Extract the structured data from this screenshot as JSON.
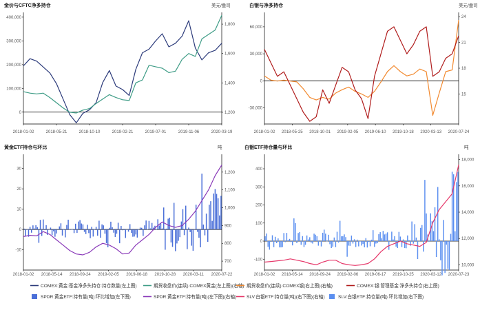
{
  "colors": {
    "navy": "#2b3a7a",
    "teal": "#3e9c86",
    "orange": "#f28a30",
    "darkred": "#b01c1c",
    "blue": "#4a6fd8",
    "purple": "#8a3ab9",
    "pink": "#e6386a",
    "ltblue": "#5b8ff0",
    "axis": "#000000",
    "grid": "#cccccc"
  },
  "legend": {
    "row1": [
      {
        "label": "COMEX:黄金:基金净多头持仓:持仓数量(左上图)",
        "kind": "line",
        "color": "#2b3a7a"
      },
      {
        "label": "期货收盘价(连续):COMEX黄金(左上图)(右轴)",
        "kind": "line",
        "color": "#3e9c86"
      },
      {
        "label": "期货收盘价(连续):COMEX银(右上图)(右轴)",
        "kind": "line",
        "color": "#f28a30"
      },
      {
        "label": "COMEX:银:管理基金:净多头持仓(右上图)",
        "kind": "line",
        "color": "#b01c1c"
      }
    ],
    "row2": [
      {
        "label": "SPDR:黄金ETF:持有量(吨):环比增加(左下图)",
        "kind": "bar",
        "color": "#4a6fd8"
      },
      {
        "label": "SPDR:黄金ETF:持有量(吨)(左下图)(右轴)",
        "kind": "line",
        "color": "#8a3ab9"
      },
      {
        "label": "SLV:白银ETF:持仓量(吨)(右下图)(右轴)",
        "kind": "line",
        "color": "#e6386a"
      },
      {
        "label": "SLV:白银ETF:持仓量(吨):环比增加(右下图)",
        "kind": "bar",
        "color": "#5b8ff0"
      }
    ]
  },
  "chart_data": [
    {
      "id": "c1",
      "type": "line",
      "title": "金价与CFTC净多持仓",
      "right_unit": "美元/盎司",
      "x_ticks": [
        "2018-01-02",
        "2018-05-21",
        "2018-10-10",
        "2019-02-21",
        "2019-07-01",
        "2019-11-06",
        "2020-03-19"
      ],
      "y_left": {
        "range": [
          -50000,
          420000
        ],
        "ticks": [
          "0",
          "100,000",
          "200,000",
          "300,000",
          "400,000"
        ],
        "tick_values": [
          0,
          100000,
          200000,
          300000,
          400000
        ]
      },
      "y_right": {
        "range": [
          1120,
          1880
        ],
        "ticks": [
          "1,200",
          "1,400",
          "1,600",
          "1,800"
        ],
        "tick_values": [
          1200,
          1400,
          1600,
          1800
        ]
      },
      "series": [
        {
          "color": "#2b3a7a",
          "axis": "left",
          "x": [
            "2018-01",
            "2018-02",
            "2018-03",
            "2018-04",
            "2018-05",
            "2018-06",
            "2018-07",
            "2018-08",
            "2018-09",
            "2018-10",
            "2018-11",
            "2018-12",
            "2019-01",
            "2019-02",
            "2019-03",
            "2019-04",
            "2019-05",
            "2019-06",
            "2019-07",
            "2019-08",
            "2019-09",
            "2019-10",
            "2019-11",
            "2019-12",
            "2020-01",
            "2020-02",
            "2020-03",
            "2020-04",
            "2020-05",
            "2020-06",
            "2020-07"
          ],
          "values": [
            195000,
            225000,
            215000,
            190000,
            165000,
            120000,
            55000,
            -10000,
            -45000,
            -5000,
            10000,
            40000,
            125000,
            175000,
            110000,
            95000,
            70000,
            180000,
            250000,
            265000,
            300000,
            330000,
            275000,
            290000,
            320000,
            385000,
            270000,
            220000,
            250000,
            260000,
            290000
          ]
        },
        {
          "color": "#3e9c86",
          "axis": "right",
          "x": [
            "2018-01",
            "2018-02",
            "2018-03",
            "2018-04",
            "2018-05",
            "2018-06",
            "2018-07",
            "2018-08",
            "2018-09",
            "2018-10",
            "2018-11",
            "2018-12",
            "2019-01",
            "2019-02",
            "2019-03",
            "2019-04",
            "2019-05",
            "2019-06",
            "2019-07",
            "2019-08",
            "2019-09",
            "2019-10",
            "2019-11",
            "2019-12",
            "2020-01",
            "2020-02",
            "2020-03",
            "2020-04",
            "2020-05",
            "2020-06",
            "2020-07"
          ],
          "values": [
            1340,
            1330,
            1325,
            1330,
            1300,
            1265,
            1230,
            1200,
            1195,
            1215,
            1225,
            1260,
            1290,
            1320,
            1300,
            1285,
            1280,
            1400,
            1420,
            1520,
            1510,
            1500,
            1470,
            1480,
            1560,
            1600,
            1580,
            1700,
            1730,
            1760,
            1860
          ]
        }
      ]
    },
    {
      "id": "c2",
      "type": "line",
      "title": "白银与净多持仓",
      "right_unit": "美元/盎司",
      "x_ticks": [
        "2018-01-02",
        "2018-05-25",
        "2018-10-01",
        "2019-02-05",
        "2019-06-10",
        "2019-10-18",
        "2020-03-13",
        "2020-07-24"
      ],
      "y_left": {
        "range": [
          -48000,
          76000
        ],
        "ticks": [
          "-30,000",
          "0",
          "30,000",
          "60,000"
        ],
        "tick_values": [
          -30000,
          0,
          30000,
          60000
        ]
      },
      "y_right": {
        "range": [
          11.5,
          24.5
        ],
        "ticks": [
          "15",
          "18",
          "21",
          "24"
        ],
        "tick_values": [
          15,
          18,
          21,
          24
        ]
      },
      "series": [
        {
          "color": "#f28a30",
          "axis": "right",
          "x": [
            "2018-01",
            "2018-02",
            "2018-03",
            "2018-04",
            "2018-05",
            "2018-06",
            "2018-07",
            "2018-08",
            "2018-09",
            "2018-10",
            "2018-11",
            "2018-12",
            "2019-01",
            "2019-02",
            "2019-03",
            "2019-04",
            "2019-05",
            "2019-06",
            "2019-07",
            "2019-08",
            "2019-09",
            "2019-10",
            "2019-11",
            "2019-12",
            "2020-01",
            "2020-02",
            "2020-03",
            "2020-04",
            "2020-05",
            "2020-06",
            "2020-07"
          ],
          "values": [
            17.1,
            16.6,
            16.5,
            16.6,
            16.5,
            16.4,
            15.6,
            14.6,
            14.3,
            14.6,
            14.4,
            15.1,
            15.5,
            15.8,
            15.3,
            15.0,
            14.6,
            15.3,
            16.4,
            17.6,
            18.3,
            17.6,
            17.1,
            17.3,
            17.9,
            17.6,
            12.5,
            15.1,
            17.6,
            17.8,
            23.6
          ]
        },
        {
          "color": "#b01c1c",
          "axis": "left",
          "x": [
            "2018-01",
            "2018-02",
            "2018-03",
            "2018-04",
            "2018-05",
            "2018-06",
            "2018-07",
            "2018-08",
            "2018-09",
            "2018-10",
            "2018-11",
            "2018-12",
            "2019-01",
            "2019-02",
            "2019-03",
            "2019-04",
            "2019-05",
            "2019-06",
            "2019-07",
            "2019-08",
            "2019-09",
            "2019-10",
            "2019-11",
            "2019-12",
            "2020-01",
            "2020-02",
            "2020-03",
            "2020-04",
            "2020-05",
            "2020-06",
            "2020-07"
          ],
          "values": [
            35000,
            20000,
            5000,
            10000,
            -5000,
            -20000,
            -35000,
            -45000,
            -40000,
            -10000,
            -25000,
            -5000,
            15000,
            10000,
            -10000,
            -20000,
            -42000,
            5000,
            30000,
            55000,
            60000,
            45000,
            30000,
            40000,
            55000,
            60000,
            5000,
            10000,
            25000,
            30000,
            50000
          ]
        }
      ]
    },
    {
      "id": "c3",
      "type": "bar",
      "title": "黄金ETF持仓与环比",
      "right_unit": "吨",
      "x_ticks": [
        "2018-01-02",
        "2018-05-14",
        "2018-09-24",
        "2019-02-05",
        "2019-06-18",
        "2019-10-28",
        "2020-03-11",
        "2020-07-22"
      ],
      "y_left": {
        "range": [
          -20,
          37
        ],
        "ticks": [
          "-10",
          "0",
          "10",
          "20",
          "30"
        ],
        "tick_values": [
          -10,
          0,
          10,
          20,
          30
        ]
      },
      "y_right": {
        "range": [
          650,
          1300
        ],
        "ticks": [
          "700",
          "800",
          "900",
          "1,000",
          "1,100",
          "1,200"
        ],
        "tick_values": [
          700,
          800,
          900,
          1000,
          1100,
          1200
        ]
      },
      "series": [
        {
          "name": "",
          "kind": "bar",
          "color": "#4a6fd8",
          "axis": "left",
          "seed": 7,
          "scale_profile": "gold"
        },
        {
          "color": "#8a3ab9",
          "axis": "right",
          "kind": "line",
          "x": [
            "2018-01",
            "2018-02",
            "2018-03",
            "2018-04",
            "2018-05",
            "2018-06",
            "2018-07",
            "2018-08",
            "2018-09",
            "2018-10",
            "2018-11",
            "2018-12",
            "2019-01",
            "2019-02",
            "2019-03",
            "2019-04",
            "2019-05",
            "2019-06",
            "2019-07",
            "2019-08",
            "2019-09",
            "2019-10",
            "2019-11",
            "2019-12",
            "2020-01",
            "2020-02",
            "2020-03",
            "2020-04",
            "2020-05",
            "2020-06",
            "2020-07"
          ],
          "values": [
            838,
            845,
            842,
            866,
            850,
            820,
            790,
            760,
            740,
            735,
            750,
            780,
            800,
            790,
            770,
            740,
            745,
            790,
            820,
            850,
            890,
            920,
            900,
            890,
            900,
            935,
            980,
            1040,
            1100,
            1180,
            1240
          ]
        }
      ]
    },
    {
      "id": "c4",
      "type": "bar",
      "title": "白银ETF持仓量与环比",
      "right_unit": "吨",
      "x_ticks": [
        "2018-01-02",
        "2018-05-14",
        "2018-09-24",
        "2019-02-06",
        "2019-06-17",
        "2019-10-25",
        "2020-03-12",
        "2020-07-23"
      ],
      "y_left": {
        "range": [
          -160,
          480
        ],
        "ticks": [
          "-100",
          "0",
          "100",
          "200",
          "300",
          "400"
        ],
        "tick_values": [
          -100,
          0,
          100,
          200,
          300,
          400
        ]
      },
      "y_right": {
        "range": [
          9600,
          18400
        ],
        "ticks": [
          "10,000",
          "12,000",
          "14,000",
          "16,000",
          "18,000"
        ],
        "tick_values": [
          10000,
          12000,
          14000,
          16000,
          18000
        ]
      },
      "series": [
        {
          "name": "",
          "kind": "bar",
          "color": "#5b8ff0",
          "axis": "left",
          "seed": 13,
          "scale_profile": "silver"
        },
        {
          "color": "#e6386a",
          "axis": "right",
          "kind": "line",
          "x": [
            "2018-01",
            "2018-02",
            "2018-03",
            "2018-04",
            "2018-05",
            "2018-06",
            "2018-07",
            "2018-08",
            "2018-09",
            "2018-10",
            "2018-11",
            "2018-12",
            "2019-01",
            "2019-02",
            "2019-03",
            "2019-04",
            "2019-05",
            "2019-06",
            "2019-07",
            "2019-08",
            "2019-09",
            "2019-10",
            "2019-11",
            "2019-12",
            "2020-01",
            "2020-02",
            "2020-03",
            "2020-04",
            "2020-05",
            "2020-06",
            "2020-07"
          ],
          "values": [
            10200,
            10250,
            10300,
            10350,
            10450,
            10350,
            10250,
            10100,
            10000,
            10200,
            10350,
            10350,
            10100,
            10000,
            9950,
            10000,
            10100,
            10450,
            11000,
            11400,
            11600,
            11800,
            11600,
            11500,
            11400,
            11700,
            13200,
            14200,
            14800,
            15400,
            17600
          ]
        }
      ]
    }
  ]
}
